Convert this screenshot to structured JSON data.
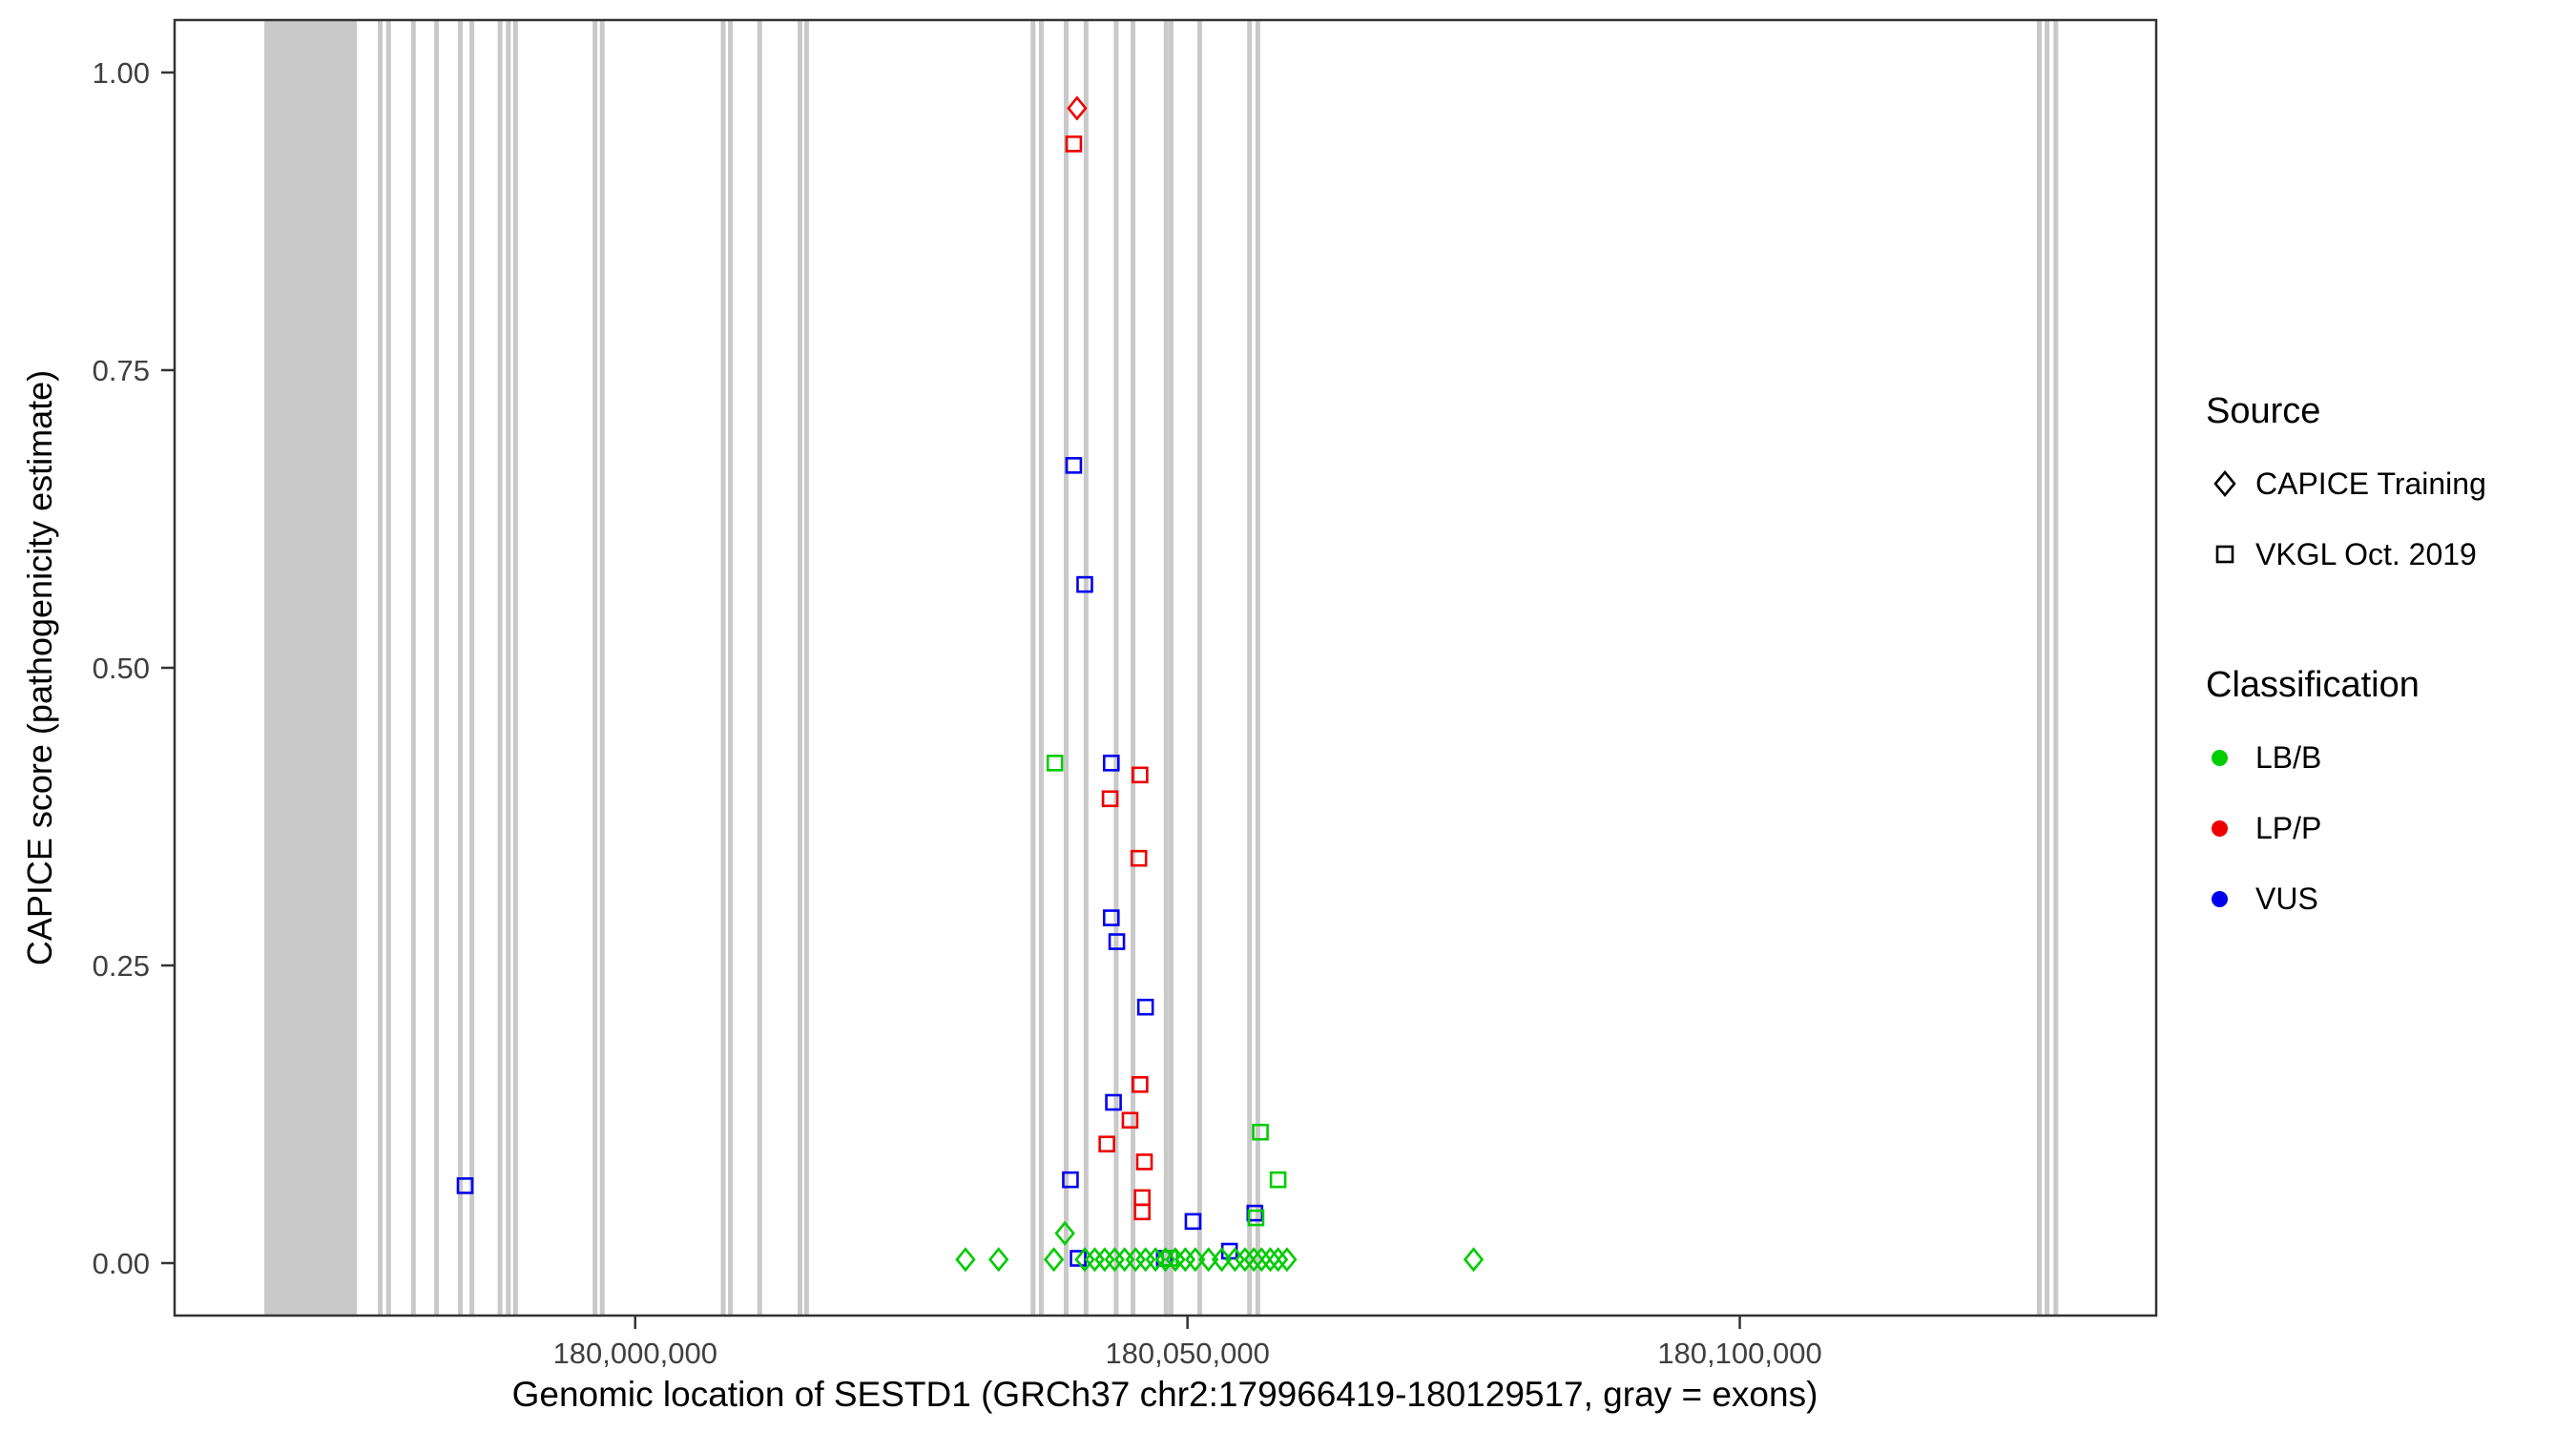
{
  "chart_data": {
    "type": "scatter",
    "title": "",
    "xlabel": "Genomic location of SESTD1 (GRCh37 chr2:179966419-180129517, gray = exons)",
    "ylabel": "CAPICE score (pathogenicity estimate)",
    "xlim": [
      179958300,
      180137700
    ],
    "ylim": [
      0,
      1
    ],
    "grid": false,
    "panel_border_color": "#333333",
    "tick_color": "#333333",
    "tick_label_color": "#404040",
    "exon_color": "#C9C9C9",
    "x_ticks": [
      {
        "value": 180000000,
        "label": "180,000,000"
      },
      {
        "value": 180050000,
        "label": "180,050,000"
      },
      {
        "value": 180100000,
        "label": "180,100,000"
      }
    ],
    "y_ticks": [
      {
        "value": 0.0,
        "label": "0.00"
      },
      {
        "value": 0.25,
        "label": "0.25"
      },
      {
        "value": 0.5,
        "label": "0.50"
      },
      {
        "value": 0.75,
        "label": "0.75"
      },
      {
        "value": 1.0,
        "label": "1.00"
      }
    ],
    "classification_colors": {
      "LB/B": "#00CC00",
      "LP/P": "#EE0000",
      "VUS": "#0000EE"
    },
    "source_shapes": {
      "CAPICE Training": "diamond",
      "VKGL Oct. 2019": "square"
    },
    "exons": [
      [
        179966419,
        179974800
      ],
      [
        179976700,
        179977000
      ],
      [
        179977450,
        179977750
      ],
      [
        179979700,
        179980000
      ],
      [
        179981800,
        179982100
      ],
      [
        179983950,
        179984250
      ],
      [
        179985000,
        179985300
      ],
      [
        179987550,
        179987850
      ],
      [
        179988300,
        179988600
      ],
      [
        179988950,
        179989250
      ],
      [
        179996150,
        179996450
      ],
      [
        179996800,
        179997100
      ],
      [
        180007750,
        180008050
      ],
      [
        180008400,
        180008700
      ],
      [
        180011050,
        180011350
      ],
      [
        180014700,
        180015000
      ],
      [
        180015300,
        180015600
      ],
      [
        180035800,
        180036100
      ],
      [
        180036550,
        180036850
      ],
      [
        180038800,
        180039100
      ],
      [
        180040600,
        180040900
      ],
      [
        180043330,
        180043630
      ],
      [
        180044850,
        180045150
      ],
      [
        180047850,
        180048150
      ],
      [
        180048300,
        180048600
      ],
      [
        180050880,
        180051180
      ],
      [
        180055400,
        180055700
      ],
      [
        180056150,
        180056450
      ],
      [
        180126900,
        180127200
      ],
      [
        180127600,
        180127900
      ],
      [
        180128400,
        180128700
      ]
    ],
    "points": [
      {
        "x": 180040000,
        "y": 0.97,
        "classification": "LP/P",
        "source": "CAPICE Training"
      },
      {
        "x": 180039700,
        "y": 0.94,
        "classification": "LP/P",
        "source": "VKGL Oct. 2019"
      },
      {
        "x": 180039700,
        "y": 0.67,
        "classification": "VUS",
        "source": "VKGL Oct. 2019"
      },
      {
        "x": 180040700,
        "y": 0.57,
        "classification": "VUS",
        "source": "VKGL Oct. 2019"
      },
      {
        "x": 180038000,
        "y": 0.42,
        "classification": "LB/B",
        "source": "VKGL Oct. 2019"
      },
      {
        "x": 180043100,
        "y": 0.42,
        "classification": "VUS",
        "source": "VKGL Oct. 2019"
      },
      {
        "x": 180045700,
        "y": 0.41,
        "classification": "LP/P",
        "source": "VKGL Oct. 2019"
      },
      {
        "x": 180043000,
        "y": 0.39,
        "classification": "LP/P",
        "source": "VKGL Oct. 2019"
      },
      {
        "x": 180045600,
        "y": 0.34,
        "classification": "LP/P",
        "source": "VKGL Oct. 2019"
      },
      {
        "x": 180043100,
        "y": 0.29,
        "classification": "VUS",
        "source": "VKGL Oct. 2019"
      },
      {
        "x": 180043600,
        "y": 0.27,
        "classification": "VUS",
        "source": "VKGL Oct. 2019"
      },
      {
        "x": 180046200,
        "y": 0.215,
        "classification": "VUS",
        "source": "VKGL Oct. 2019"
      },
      {
        "x": 180045700,
        "y": 0.15,
        "classification": "LP/P",
        "source": "VKGL Oct. 2019"
      },
      {
        "x": 180043300,
        "y": 0.135,
        "classification": "VUS",
        "source": "VKGL Oct. 2019"
      },
      {
        "x": 180044800,
        "y": 0.12,
        "classification": "LP/P",
        "source": "VKGL Oct. 2019"
      },
      {
        "x": 180042700,
        "y": 0.1,
        "classification": "LP/P",
        "source": "VKGL Oct. 2019"
      },
      {
        "x": 180056600,
        "y": 0.11,
        "classification": "LB/B",
        "source": "VKGL Oct. 2019"
      },
      {
        "x": 180058200,
        "y": 0.07,
        "classification": "LB/B",
        "source": "VKGL Oct. 2019"
      },
      {
        "x": 180039400,
        "y": 0.07,
        "classification": "VUS",
        "source": "VKGL Oct. 2019"
      },
      {
        "x": 180046100,
        "y": 0.085,
        "classification": "LP/P",
        "source": "VKGL Oct. 2019"
      },
      {
        "x": 180045900,
        "y": 0.055,
        "classification": "LP/P",
        "source": "VKGL Oct. 2019"
      },
      {
        "x": 180045900,
        "y": 0.043,
        "classification": "LP/P",
        "source": "VKGL Oct. 2019"
      },
      {
        "x": 180050500,
        "y": 0.035,
        "classification": "VUS",
        "source": "VKGL Oct. 2019"
      },
      {
        "x": 180056100,
        "y": 0.042,
        "classification": "VUS",
        "source": "VKGL Oct. 2019"
      },
      {
        "x": 180056200,
        "y": 0.038,
        "classification": "LB/B",
        "source": "VKGL Oct. 2019"
      },
      {
        "x": 179984600,
        "y": 0.065,
        "classification": "VUS",
        "source": "VKGL Oct. 2019"
      },
      {
        "x": 180038900,
        "y": 0.025,
        "classification": "LB/B",
        "source": "CAPICE Training"
      },
      {
        "x": 180040100,
        "y": 0.004,
        "classification": "VUS",
        "source": "VKGL Oct. 2019"
      },
      {
        "x": 180047900,
        "y": 0.004,
        "classification": "VUS",
        "source": "VKGL Oct. 2019"
      },
      {
        "x": 180053800,
        "y": 0.01,
        "classification": "VUS",
        "source": "VKGL Oct. 2019"
      },
      {
        "x": 180048400,
        "y": 0.004,
        "classification": "LB/B",
        "source": "VKGL Oct. 2019"
      },
      {
        "x": 180029900,
        "y": 0.003,
        "classification": "LB/B",
        "source": "CAPICE Training"
      },
      {
        "x": 180032900,
        "y": 0.003,
        "classification": "LB/B",
        "source": "CAPICE Training"
      },
      {
        "x": 180037900,
        "y": 0.003,
        "classification": "LB/B",
        "source": "CAPICE Training"
      },
      {
        "x": 180040700,
        "y": 0.003,
        "classification": "LB/B",
        "source": "CAPICE Training"
      },
      {
        "x": 180041600,
        "y": 0.003,
        "classification": "LB/B",
        "source": "CAPICE Training"
      },
      {
        "x": 180042500,
        "y": 0.003,
        "classification": "LB/B",
        "source": "CAPICE Training"
      },
      {
        "x": 180043400,
        "y": 0.003,
        "classification": "LB/B",
        "source": "CAPICE Training"
      },
      {
        "x": 180044300,
        "y": 0.003,
        "classification": "LB/B",
        "source": "CAPICE Training"
      },
      {
        "x": 180045300,
        "y": 0.003,
        "classification": "LB/B",
        "source": "CAPICE Training"
      },
      {
        "x": 180046200,
        "y": 0.003,
        "classification": "LB/B",
        "source": "CAPICE Training"
      },
      {
        "x": 180047100,
        "y": 0.003,
        "classification": "LB/B",
        "source": "CAPICE Training"
      },
      {
        "x": 180048000,
        "y": 0.003,
        "classification": "LB/B",
        "source": "CAPICE Training"
      },
      {
        "x": 180048900,
        "y": 0.003,
        "classification": "LB/B",
        "source": "CAPICE Training"
      },
      {
        "x": 180049800,
        "y": 0.003,
        "classification": "LB/B",
        "source": "CAPICE Training"
      },
      {
        "x": 180050700,
        "y": 0.003,
        "classification": "LB/B",
        "source": "CAPICE Training"
      },
      {
        "x": 180051900,
        "y": 0.003,
        "classification": "LB/B",
        "source": "CAPICE Training"
      },
      {
        "x": 180053100,
        "y": 0.003,
        "classification": "LB/B",
        "source": "CAPICE Training"
      },
      {
        "x": 180054300,
        "y": 0.003,
        "classification": "LB/B",
        "source": "CAPICE Training"
      },
      {
        "x": 180055200,
        "y": 0.003,
        "classification": "LB/B",
        "source": "CAPICE Training"
      },
      {
        "x": 180056000,
        "y": 0.003,
        "classification": "LB/B",
        "source": "CAPICE Training"
      },
      {
        "x": 180056700,
        "y": 0.003,
        "classification": "LB/B",
        "source": "CAPICE Training"
      },
      {
        "x": 180057500,
        "y": 0.003,
        "classification": "LB/B",
        "source": "CAPICE Training"
      },
      {
        "x": 180058200,
        "y": 0.003,
        "classification": "LB/B",
        "source": "CAPICE Training"
      },
      {
        "x": 180059000,
        "y": 0.003,
        "classification": "LB/B",
        "source": "CAPICE Training"
      },
      {
        "x": 180075900,
        "y": 0.003,
        "classification": "LB/B",
        "source": "CAPICE Training"
      }
    ],
    "legend": {
      "source": {
        "title": "Source",
        "items": [
          {
            "label": "CAPICE Training",
            "shape": "diamond"
          },
          {
            "label": "VKGL Oct. 2019",
            "shape": "square"
          }
        ]
      },
      "classification": {
        "title": "Classification",
        "items": [
          {
            "label": "LB/B",
            "color": "#00CC00"
          },
          {
            "label": "LP/P",
            "color": "#EE0000"
          },
          {
            "label": "VUS",
            "color": "#0000EE"
          }
        ]
      }
    }
  }
}
